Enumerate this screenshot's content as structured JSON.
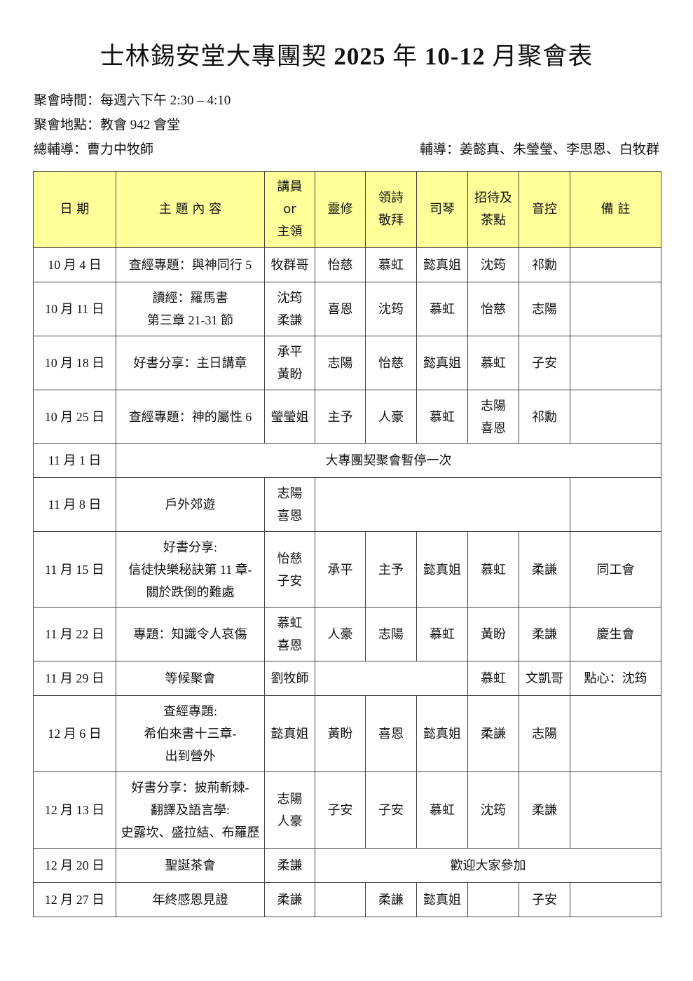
{
  "title": {
    "part1": "士林錫安堂大專團契 ",
    "year": "2025",
    "part2": " 年 ",
    "months": "10-12",
    "part3": " 月聚會表"
  },
  "info": {
    "time": "聚會時間：每週六下午 2:30 – 4:10",
    "place": "聚會地點：教會 942 會堂",
    "general_advisor": "總輔導：曹力中牧師",
    "advisors": "輔導：姜懿真、朱瑩瑩、李思恩、白牧群"
  },
  "header_color": "#ffff99",
  "table": {
    "headers": [
      "日 期",
      "主 題 內 容",
      "講員\nor\n主領",
      "靈修",
      "領詩\n敬拜",
      "司琴",
      "招待及\n茶點",
      "音控",
      "備 註"
    ],
    "rows": [
      {
        "h": 49,
        "cells": [
          {
            "t": "10 月 4 日"
          },
          {
            "t": "查經專題：與神同行 5"
          },
          {
            "t": "牧群哥"
          },
          {
            "t": "怡慈"
          },
          {
            "t": "慕虹"
          },
          {
            "t": "懿真姐"
          },
          {
            "t": "沈筠"
          },
          {
            "t": "祁勳"
          },
          {
            "t": ""
          }
        ]
      },
      {
        "h": 77,
        "cells": [
          {
            "t": "10 月 11 日"
          },
          {
            "t": "讀經：羅馬書\n第三章 21-31 節"
          },
          {
            "t": "沈筠\n柔謙"
          },
          {
            "t": "喜恩"
          },
          {
            "t": "沈筠"
          },
          {
            "t": "慕虹"
          },
          {
            "t": "怡慈"
          },
          {
            "t": "志陽"
          },
          {
            "t": ""
          }
        ]
      },
      {
        "h": 77,
        "cells": [
          {
            "t": "10 月 18 日"
          },
          {
            "t": "好書分享：主日講章"
          },
          {
            "t": "承平\n黃盼"
          },
          {
            "t": "志陽"
          },
          {
            "t": "怡慈"
          },
          {
            "t": "懿真姐"
          },
          {
            "t": "慕虹"
          },
          {
            "t": "子安"
          },
          {
            "t": ""
          }
        ]
      },
      {
        "h": 76,
        "cells": [
          {
            "t": "10 月 25 日"
          },
          {
            "t": "查經專題：神的屬性 6"
          },
          {
            "t": "瑩瑩姐"
          },
          {
            "t": "主予"
          },
          {
            "t": "人豪"
          },
          {
            "t": "慕虹"
          },
          {
            "t": "志陽\n喜恩"
          },
          {
            "t": "祁勳"
          },
          {
            "t": ""
          }
        ]
      },
      {
        "h": 49,
        "cells": [
          {
            "t": "11 月 1 日"
          },
          {
            "t": "大專團契聚會暫停一次",
            "span": 8
          }
        ]
      },
      {
        "h": 77,
        "cells": [
          {
            "t": "11 月 8 日"
          },
          {
            "t": "戶外郊遊"
          },
          {
            "t": "志陽\n喜恩"
          },
          {
            "t": "",
            "span": 5
          },
          {
            "t": ""
          }
        ]
      },
      {
        "h": 108,
        "cells": [
          {
            "t": "11 月 15 日"
          },
          {
            "t": "好書分享:\n信徒快樂秘訣第 11 章-\n關於跌倒的難處"
          },
          {
            "t": "怡慈\n子安"
          },
          {
            "t": "承平"
          },
          {
            "t": "主予"
          },
          {
            "t": "懿真姐"
          },
          {
            "t": "慕虹"
          },
          {
            "t": "柔謙"
          },
          {
            "t": "同工會"
          }
        ]
      },
      {
        "h": 77,
        "cells": [
          {
            "t": "11 月 22 日"
          },
          {
            "t": "專題：知識令人哀傷"
          },
          {
            "t": "慕虹\n喜恩"
          },
          {
            "t": "人豪"
          },
          {
            "t": "志陽"
          },
          {
            "t": "慕虹"
          },
          {
            "t": "黃盼"
          },
          {
            "t": "柔謙"
          },
          {
            "t": "慶生會"
          }
        ]
      },
      {
        "h": 49,
        "cells": [
          {
            "t": "11 月 29 日"
          },
          {
            "t": "等候聚會"
          },
          {
            "t": "劉牧師"
          },
          {
            "t": "",
            "span": 3
          },
          {
            "t": "慕虹"
          },
          {
            "t": "文凱哥"
          },
          {
            "t": "點心：沈筠"
          }
        ]
      },
      {
        "h": 109,
        "cells": [
          {
            "t": "12 月 6 日"
          },
          {
            "t": "查經專題:\n希伯來書十三章-\n出到營外"
          },
          {
            "t": "懿真姐"
          },
          {
            "t": "黃盼"
          },
          {
            "t": "喜恩"
          },
          {
            "t": "懿真姐"
          },
          {
            "t": "柔謙"
          },
          {
            "t": "志陽"
          },
          {
            "t": ""
          }
        ]
      },
      {
        "h": 109,
        "cells": [
          {
            "t": "12 月 13 日"
          },
          {
            "t": "好書分享：披荊斬棘-\n翻譯及語言學:\n史露坎、盛拉結、布羅歷"
          },
          {
            "t": "志陽\n人豪"
          },
          {
            "t": "子安"
          },
          {
            "t": "子安"
          },
          {
            "t": "慕虹"
          },
          {
            "t": "沈筠"
          },
          {
            "t": "柔謙"
          },
          {
            "t": ""
          }
        ]
      },
      {
        "h": 49,
        "cells": [
          {
            "t": "12 月 20 日"
          },
          {
            "t": "聖誕茶會"
          },
          {
            "t": "柔謙"
          },
          {
            "t": "歡迎大家參加",
            "span": 6
          }
        ]
      },
      {
        "h": 49,
        "cells": [
          {
            "t": "12 月 27 日"
          },
          {
            "t": "年終感恩見證"
          },
          {
            "t": "柔謙"
          },
          {
            "t": ""
          },
          {
            "t": "柔謙"
          },
          {
            "t": "懿真姐"
          },
          {
            "t": ""
          },
          {
            "t": "子安"
          },
          {
            "t": ""
          }
        ]
      }
    ]
  }
}
